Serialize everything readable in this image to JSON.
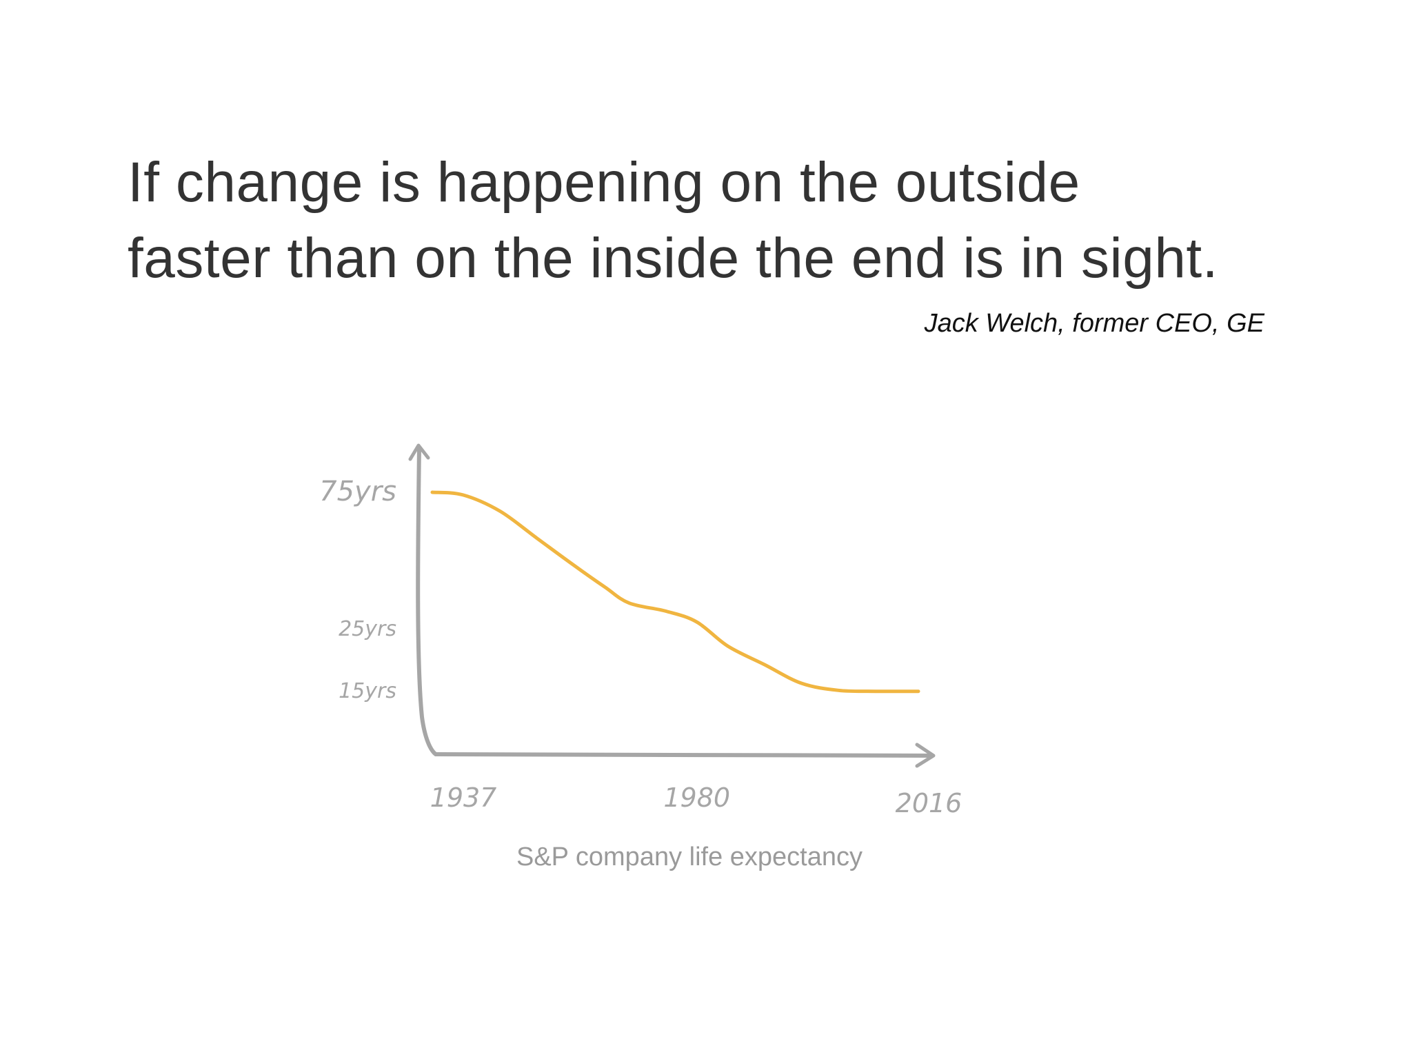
{
  "quote": {
    "line1": "If change is happening on the outside",
    "line2": "faster than on the inside the end is in sight.",
    "attribution": "Jack Welch, former CEO, GE"
  },
  "colors": {
    "text": "#333333",
    "curve": "#f0b540",
    "axis": "#a6a6a6",
    "caption": "#9a9a9a"
  },
  "chart_data": {
    "type": "line",
    "title": "S&P company life expectancy",
    "xlabel": "",
    "ylabel": "",
    "x_ticks": [
      {
        "value": 1937,
        "label": "1937"
      },
      {
        "value": 1980,
        "label": "1980"
      },
      {
        "value": 2016,
        "label": "2016"
      }
    ],
    "y_ticks": [
      {
        "value": 75,
        "label": "75yrs"
      },
      {
        "value": 25,
        "label": "25yrs"
      },
      {
        "value": 15,
        "label": "15yrs"
      }
    ],
    "xlim": [
      1937,
      2016
    ],
    "ylim": [
      0,
      75
    ],
    "grid": false,
    "series": [
      {
        "values": [
          [
            1937,
            75
          ],
          [
            1942,
            74
          ],
          [
            1948,
            68
          ],
          [
            1954,
            58
          ],
          [
            1960,
            48
          ],
          [
            1965,
            40
          ],
          [
            1969,
            34
          ],
          [
            1975,
            31
          ],
          [
            1980,
            27
          ],
          [
            1985,
            22
          ],
          [
            1991,
            19
          ],
          [
            1997,
            16
          ],
          [
            2003,
            14
          ],
          [
            2009,
            13
          ],
          [
            2016,
            13
          ]
        ]
      }
    ]
  }
}
